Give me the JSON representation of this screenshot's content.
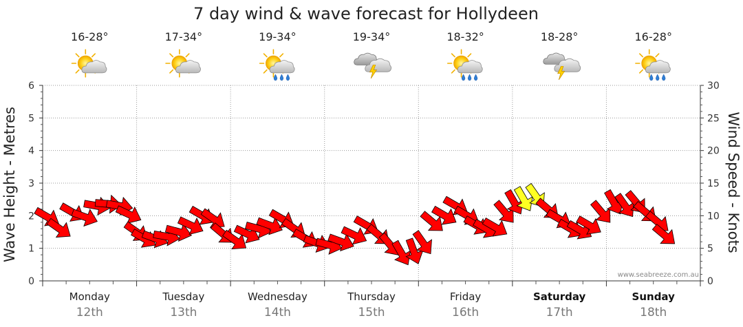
{
  "colors": {
    "arrow_fill": "#ff0000",
    "arrow_fill_high": "#ffff22",
    "arrow_stroke": "#000000",
    "grid": "#999999",
    "date_text": "#777777"
  },
  "watermark": "www.seabreeze.com.au",
  "chart_data": {
    "type": "line",
    "title": "7 day wind & wave forecast for Hollydeen",
    "ylabel": "Wave Height - Metres",
    "ylabel_right": "Wind Speed - Knots",
    "ylim": [
      0,
      6
    ],
    "ylim_right": [
      0,
      30
    ],
    "yticks": [
      "0",
      "1",
      "2",
      "3",
      "4",
      "5",
      "6"
    ],
    "yticks_right": [
      "0",
      "5",
      "10",
      "15",
      "20",
      "25",
      "30"
    ],
    "grid": true,
    "x_units": "days from Monday 00:00",
    "days": [
      {
        "name": "Monday",
        "date": "12th",
        "temp": "16-28°",
        "icon": "sun-cloud-icon",
        "bold": false
      },
      {
        "name": "Tuesday",
        "date": "13th",
        "temp": "17-34°",
        "icon": "sun-cloud-icon",
        "bold": false
      },
      {
        "name": "Wednesday",
        "date": "14th",
        "temp": "19-34°",
        "icon": "sun-cloud-rain-icon",
        "bold": false
      },
      {
        "name": "Thursday",
        "date": "15th",
        "temp": "19-34°",
        "icon": "storm-cloud-icon",
        "bold": false
      },
      {
        "name": "Friday",
        "date": "16th",
        "temp": "18-32°",
        "icon": "sun-cloud-rain-icon",
        "bold": false
      },
      {
        "name": "Saturday",
        "date": "17th",
        "temp": "18-28°",
        "icon": "storm-clouds-icon",
        "bold": true
      },
      {
        "name": "Sunday",
        "date": "18th",
        "temp": "16-28°",
        "icon": "sun-cloud-rain-icon",
        "bold": true
      }
    ],
    "series": [
      {
        "name": "Wind Speed (knots)",
        "x": [
          0.05,
          0.18,
          0.32,
          0.45,
          0.58,
          0.7,
          0.82,
          0.92,
          1.0,
          1.08,
          1.2,
          1.32,
          1.45,
          1.58,
          1.7,
          1.82,
          1.92,
          2.05,
          2.18,
          2.3,
          2.42,
          2.55,
          2.68,
          2.8,
          2.92,
          3.05,
          3.18,
          3.32,
          3.45,
          3.58,
          3.7,
          3.82,
          3.95,
          4.05,
          4.15,
          4.28,
          4.4,
          4.52,
          4.62,
          4.72,
          4.82,
          4.92,
          5.02,
          5.12,
          5.25,
          5.38,
          5.5,
          5.62,
          5.72,
          5.82,
          5.95,
          6.08,
          6.2,
          6.32,
          6.42,
          6.55,
          6.62
        ],
        "values": [
          9.8,
          8.0,
          10.5,
          9.8,
          11.5,
          11.8,
          11.5,
          10.2,
          7.5,
          6.5,
          6.5,
          6.8,
          7.5,
          8.5,
          10.0,
          9.5,
          7.2,
          6.2,
          7.2,
          8.0,
          8.5,
          9.5,
          8.0,
          6.5,
          5.8,
          5.5,
          6.0,
          7.0,
          8.5,
          7.0,
          5.5,
          4.2,
          4.5,
          5.8,
          9.0,
          10.0,
          11.5,
          10.0,
          8.5,
          8.0,
          8.2,
          10.5,
          12.0,
          12.5,
          13.0,
          11.0,
          9.5,
          8.0,
          7.8,
          8.5,
          10.5,
          12.0,
          11.5,
          12.0,
          10.5,
          9.0,
          7.0
        ]
      },
      {
        "name": "Wind Direction (deg, from)",
        "x": [
          0.05,
          0.18,
          0.32,
          0.45,
          0.58,
          0.7,
          0.82,
          0.92,
          1.0,
          1.08,
          1.2,
          1.32,
          1.45,
          1.58,
          1.7,
          1.82,
          1.92,
          2.05,
          2.18,
          2.3,
          2.42,
          2.55,
          2.68,
          2.8,
          2.92,
          3.05,
          3.18,
          3.32,
          3.45,
          3.58,
          3.7,
          3.82,
          3.95,
          4.05,
          4.15,
          4.28,
          4.4,
          4.52,
          4.62,
          4.72,
          4.82,
          4.92,
          5.02,
          5.12,
          5.25,
          5.38,
          5.5,
          5.62,
          5.72,
          5.82,
          5.95,
          6.08,
          6.2,
          6.32,
          6.42,
          6.55,
          6.62
        ],
        "values": [
          300,
          305,
          300,
          290,
          280,
          275,
          280,
          295,
          305,
          300,
          290,
          280,
          285,
          295,
          300,
          305,
          310,
          305,
          295,
          285,
          290,
          300,
          305,
          300,
          290,
          285,
          290,
          295,
          300,
          310,
          320,
          330,
          340,
          325,
          310,
          300,
          300,
          300,
          300,
          300,
          300,
          320,
          330,
          330,
          325,
          310,
          300,
          300,
          300,
          300,
          320,
          330,
          325,
          320,
          310,
          310,
          310
        ]
      }
    ]
  }
}
